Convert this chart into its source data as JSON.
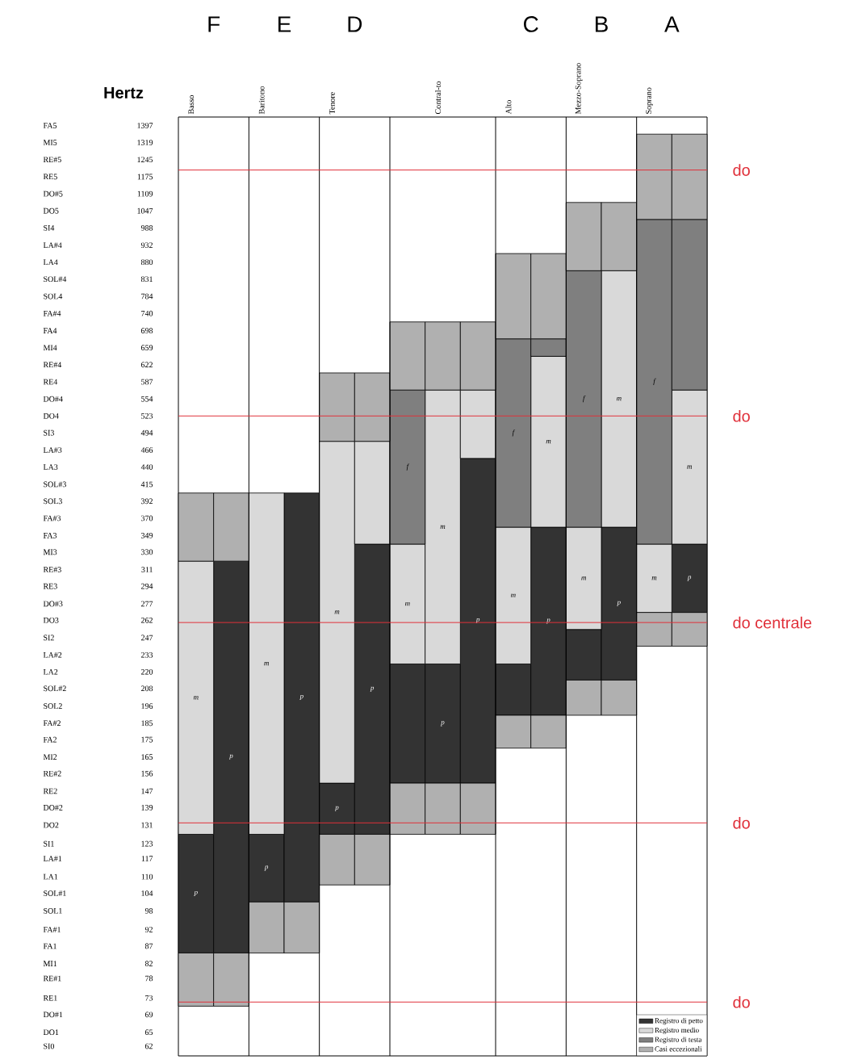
{
  "chart_data": {
    "type": "bar",
    "categories": [
      "Basso",
      null,
      "Baritono",
      null,
      "Tenore",
      null,
      null,
      "Contral-to",
      null,
      "Alto",
      null,
      "Mezzo-Soprano",
      null,
      "Soprano",
      null
    ],
    "series": [
      {
        "name": "Registro di petto",
        "color": "#333333",
        "base": [
          85,
          85,
          101,
          101,
          127,
          127,
          151,
          151,
          151,
          190,
          190,
          214,
          214,
          null,
          269
        ],
        "values": [
          42,
          235,
          26,
          302,
          24,
          212,
          75,
          75,
          302,
          36,
          169,
          40,
          145,
          null,
          70
        ],
        "value_labels": [
          "p",
          "p",
          "p",
          "p",
          "p",
          "p",
          null,
          "p",
          "p",
          null,
          "p",
          null,
          "p",
          null,
          "p"
        ]
      },
      {
        "name": "Registro medio",
        "color": "#d9d9d9",
        "base": [
          127,
          null,
          127,
          null,
          151,
          339,
          226,
          226,
          453,
          226,
          359,
          254,
          359,
          269,
          339
        ],
        "values": [
          193,
          null,
          276,
          null,
          329,
          141,
          113,
          345,
          118,
          133,
          281,
          105,
          496,
          70,
          232
        ],
        "value_labels": [
          "m",
          null,
          "m",
          null,
          "m",
          null,
          "m",
          "m",
          null,
          "m",
          "m",
          "m",
          "m",
          "m",
          "m"
        ]
      },
      {
        "name": "Registro di testa",
        "color": "#7f7f7f",
        "base": [
          null,
          null,
          null,
          null,
          null,
          null,
          339,
          null,
          null,
          359,
          640,
          359,
          null,
          339,
          571
        ],
        "values": [
          null,
          null,
          null,
          null,
          null,
          null,
          232,
          null,
          null,
          320,
          39,
          496,
          null,
          678,
          446
        ],
        "value_labels": [
          null,
          null,
          null,
          null,
          null,
          null,
          "f",
          null,
          null,
          "f",
          null,
          "f",
          null,
          "f",
          null
        ]
      },
      {
        "name": "Casi eccezionali",
        "color": "#b0b0b0",
        "base": [
          320,
          320,
          null,
          null,
          480,
          480,
          571,
          571,
          571,
          679,
          679,
          855,
          855,
          1017,
          1017
        ],
        "values": [
          83,
          83,
          null,
          null,
          125,
          125,
          148,
          148,
          148,
          227,
          227,
          222,
          222,
          340,
          340
        ]
      },
      {
        "color": "#b0b0b0",
        "base": [
          71,
          71,
          85,
          85,
          107,
          107,
          127,
          127,
          127,
          170,
          170,
          190,
          190,
          240,
          240
        ],
        "values": [
          14,
          14,
          16,
          16,
          20,
          20,
          24,
          24,
          24,
          20,
          20,
          24,
          24,
          29,
          29
        ]
      }
    ],
    "log": "y",
    "ylabel": "Hertz",
    "ylim": [
      60,
      1438
    ],
    "yticks": [
      62,
      65,
      69,
      73,
      78,
      82,
      87,
      92,
      98,
      104,
      110,
      117,
      123,
      131,
      139,
      147,
      156,
      165,
      175,
      185,
      196,
      208,
      220,
      233,
      247,
      262,
      277,
      294,
      311,
      330,
      349,
      370,
      392,
      415,
      440,
      466,
      494,
      523,
      554,
      587,
      622,
      659,
      698,
      740,
      784,
      831,
      880,
      932,
      988,
      1047,
      1109,
      1175,
      1245,
      1319,
      1397
    ],
    "ref_lines": [
      {
        "axis": "y",
        "value": 1202,
        "label": "do",
        "color": "#e0303a"
      },
      {
        "axis": "y",
        "value": 523,
        "label": "do",
        "color": "#e0303a"
      },
      {
        "axis": "y",
        "value": 260,
        "label": "do centrale",
        "color": "#e0303a"
      },
      {
        "axis": "y",
        "value": 132,
        "label": "do",
        "color": "#e0303a"
      },
      {
        "axis": "y",
        "value": 72,
        "label": "do",
        "color": "#e0303a"
      }
    ],
    "annotations": [
      "F",
      "E",
      "D",
      "C",
      "B",
      "A",
      "SI0",
      "DO1",
      "DO#1",
      "RE1",
      "RE#1",
      "MI1",
      "FA1",
      "FA#1",
      "SOL1",
      "SOL#1",
      "LA1",
      "LA#1",
      "SI1",
      "DO2",
      "DO#2",
      "RE2",
      "RE#2",
      "MI2",
      "FA2",
      "FA#2",
      "SOL2",
      "SOL#2",
      "LA2",
      "LA#2",
      "SI2",
      "DO3",
      "DO#3",
      "RE3",
      "RE#3",
      "MI3",
      "FA3",
      "FA#3",
      "SOL3",
      "SOL#3",
      "LA3",
      "LA#3",
      "SI3",
      "DO4",
      "DO#4",
      "RE4",
      "RE#4",
      "MI4",
      "FA4",
      "FA#4",
      "SOL4",
      "SOL#4",
      "LA4",
      "LA#4",
      "SI4",
      "DO5",
      "DO#5",
      "RE5",
      "RE#5",
      "MI5",
      "FA5"
    ],
    "legend": "bottom right"
  }
}
